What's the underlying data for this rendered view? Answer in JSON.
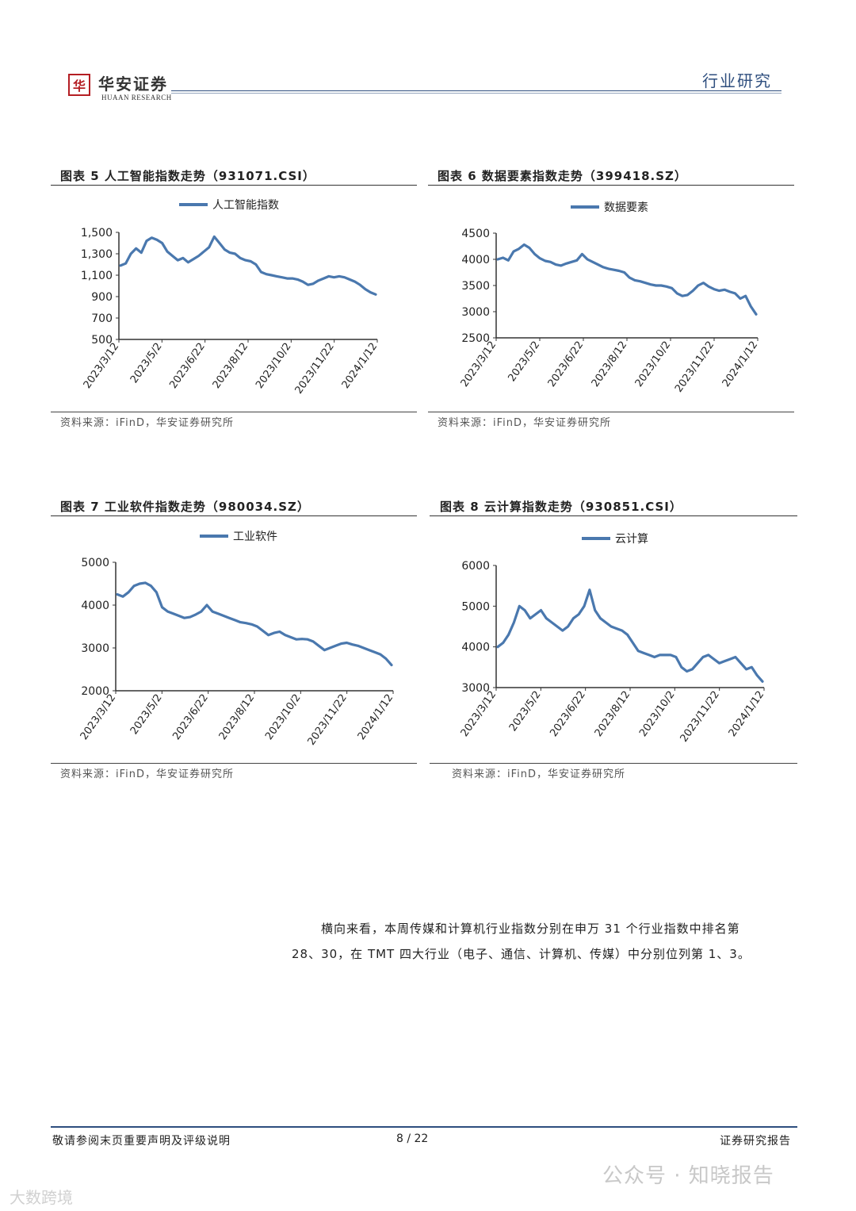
{
  "header": {
    "logo_glyph": "华",
    "logo_cn": "华安证券",
    "logo_en": "HUAAN RESEARCH",
    "tag": "行业研究"
  },
  "charts": [
    {
      "title": "图表 5 人工智能指数走势（931071.CSI）",
      "source": "资料来源：iFinD，华安证券研究所",
      "chart_data": {
        "type": "line",
        "series": [
          {
            "name": "人工智能指数",
            "color": "#4a78ae"
          }
        ],
        "x_ticks": [
          "2023/3/12",
          "2023/5/2",
          "2023/6/22",
          "2023/8/12",
          "2023/10/2",
          "2023/11/22",
          "2024/1/12"
        ],
        "y_ticks": [
          "1,500",
          "1,300",
          "1,100",
          "900",
          "700",
          "500"
        ],
        "ylim": [
          500,
          1500
        ],
        "points": [
          1190,
          1210,
          1300,
          1350,
          1310,
          1420,
          1450,
          1430,
          1400,
          1320,
          1280,
          1240,
          1260,
          1220,
          1250,
          1280,
          1320,
          1360,
          1460,
          1400,
          1340,
          1310,
          1300,
          1260,
          1240,
          1230,
          1200,
          1130,
          1110,
          1100,
          1090,
          1080,
          1070,
          1070,
          1060,
          1040,
          1010,
          1020,
          1050,
          1070,
          1090,
          1080,
          1090,
          1080,
          1060,
          1040,
          1010,
          970,
          940,
          920
        ]
      }
    },
    {
      "title": "图表 6 数据要素指数走势（399418.SZ）",
      "source": "资料来源：iFinD，华安证券研究所",
      "chart_data": {
        "type": "line",
        "series": [
          {
            "name": "数据要素",
            "color": "#4a78ae"
          }
        ],
        "x_ticks": [
          "2023/3/12",
          "2023/5/2",
          "2023/6/22",
          "2023/8/12",
          "2023/10/2",
          "2023/11/22",
          "2024/1/12"
        ],
        "y_ticks": [
          "4500",
          "4000",
          "3500",
          "3000",
          "2500"
        ],
        "ylim": [
          2500,
          4500
        ],
        "points": [
          4000,
          4030,
          3980,
          4150,
          4200,
          4280,
          4220,
          4100,
          4020,
          3970,
          3950,
          3900,
          3880,
          3920,
          3950,
          3980,
          4100,
          4000,
          3950,
          3900,
          3850,
          3820,
          3800,
          3780,
          3750,
          3650,
          3600,
          3580,
          3550,
          3520,
          3500,
          3500,
          3480,
          3450,
          3350,
          3300,
          3320,
          3400,
          3500,
          3550,
          3480,
          3430,
          3400,
          3420,
          3380,
          3350,
          3250,
          3300,
          3100,
          2950
        ]
      }
    },
    {
      "title": "图表 7 工业软件指数走势（980034.SZ）",
      "source": "资料来源：iFinD，华安证券研究所",
      "chart_data": {
        "type": "line",
        "series": [
          {
            "name": "工业软件",
            "color": "#4a78ae"
          }
        ],
        "x_ticks": [
          "2023/3/12",
          "2023/5/2",
          "2023/6/22",
          "2023/8/12",
          "2023/10/2",
          "2023/11/22",
          "2024/1/12"
        ],
        "y_ticks": [
          "5000",
          "4000",
          "3000",
          "2000"
        ],
        "ylim": [
          2000,
          5000
        ],
        "points": [
          4250,
          4200,
          4300,
          4450,
          4500,
          4520,
          4450,
          4300,
          3950,
          3850,
          3800,
          3750,
          3700,
          3720,
          3780,
          3850,
          4000,
          3850,
          3800,
          3750,
          3700,
          3650,
          3600,
          3580,
          3550,
          3500,
          3400,
          3300,
          3350,
          3380,
          3300,
          3250,
          3200,
          3210,
          3200,
          3150,
          3050,
          2950,
          3000,
          3050,
          3100,
          3120,
          3080,
          3050,
          3000,
          2950,
          2900,
          2850,
          2750,
          2600
        ]
      }
    },
    {
      "title": "图表 8 云计算指数走势（930851.CSI）",
      "source": "资料来源：iFinD，华安证券研究所",
      "chart_data": {
        "type": "line",
        "series": [
          {
            "name": "云计算",
            "color": "#4a78ae"
          }
        ],
        "x_ticks": [
          "2023/3/12",
          "2023/5/2",
          "2023/6/22",
          "2023/8/12",
          "2023/10/2",
          "2023/11/22",
          "2024/1/12"
        ],
        "y_ticks": [
          "6000",
          "5000",
          "4000",
          "3000"
        ],
        "ylim": [
          3000,
          6000
        ],
        "points": [
          4000,
          4100,
          4300,
          4600,
          5000,
          4900,
          4700,
          4800,
          4900,
          4700,
          4600,
          4500,
          4400,
          4500,
          4700,
          4800,
          5000,
          5400,
          4900,
          4700,
          4600,
          4500,
          4450,
          4400,
          4300,
          4100,
          3900,
          3850,
          3800,
          3750,
          3800,
          3800,
          3800,
          3750,
          3500,
          3400,
          3450,
          3600,
          3750,
          3800,
          3700,
          3600,
          3650,
          3700,
          3750,
          3600,
          3450,
          3500,
          3300,
          3150
        ]
      }
    }
  ],
  "body": {
    "line1": "横向来看，本周传媒和计算机行业指数分别在申万 31 个行业指数中排名第",
    "line2": "28、30，在 TMT 四大行业（电子、通信、计算机、传媒）中分别位列第 1、3。"
  },
  "footer": {
    "left": "敬请参阅末页重要声明及评级说明",
    "page": "8 / 22",
    "right": "证券研究报告"
  },
  "watermarks": {
    "right": "公众号 · 知晓报告",
    "left": "大数跨境"
  }
}
